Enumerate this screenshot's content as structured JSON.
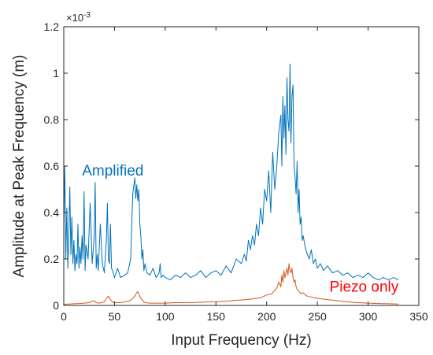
{
  "chart_data": {
    "type": "line",
    "xlabel": "Input Frequency (Hz)",
    "ylabel": "Amplitude at Peak Frequency (m)",
    "exponent_label": "×10",
    "exponent_power": "-3",
    "xlim": [
      0,
      350
    ],
    "ylim": [
      0,
      1.2
    ],
    "xticks": [
      "0",
      "50",
      "100",
      "150",
      "200",
      "250",
      "300",
      "350"
    ],
    "yticks": [
      "0",
      "0.2",
      "0.4",
      "0.6",
      "0.8",
      "1",
      "1.2"
    ],
    "grid": false,
    "series": [
      {
        "name": "Amplified",
        "color": "#0072BD",
        "x": [
          0,
          1,
          2,
          3,
          4,
          5,
          6,
          7,
          8,
          9,
          10,
          11,
          12,
          13,
          14,
          15,
          16,
          17,
          18,
          19,
          20,
          21,
          22,
          24,
          26,
          28,
          30,
          31,
          32,
          33,
          34,
          36,
          38,
          40,
          42,
          43,
          44,
          45,
          46,
          47,
          48,
          50,
          53,
          56,
          60,
          63,
          66,
          68,
          70,
          71,
          72,
          73,
          74,
          75,
          76,
          77,
          78,
          79,
          80,
          82,
          85,
          88,
          91,
          94,
          95,
          96,
          98,
          100,
          105,
          110,
          115,
          120,
          125,
          130,
          135,
          140,
          145,
          150,
          155,
          160,
          165,
          170,
          175,
          178,
          180,
          182,
          184,
          186,
          188,
          190,
          192,
          194,
          196,
          198,
          200,
          202,
          204,
          206,
          208,
          210,
          212,
          214,
          215,
          216,
          217,
          218,
          219,
          220,
          221,
          222,
          223,
          224,
          225,
          226,
          227,
          228,
          229,
          230,
          231,
          232,
          233,
          234,
          235,
          236,
          238,
          240,
          242,
          244,
          246,
          248,
          250,
          253,
          256,
          260,
          265,
          270,
          275,
          280,
          285,
          290,
          295,
          300,
          305,
          310,
          315,
          320,
          325,
          330
        ],
        "y": [
          0.35,
          0.6,
          0.2,
          0.42,
          0.16,
          0.3,
          0.51,
          0.22,
          0.38,
          0.18,
          0.28,
          0.15,
          0.22,
          0.18,
          0.35,
          0.16,
          0.25,
          0.18,
          0.3,
          0.2,
          0.49,
          0.15,
          0.26,
          0.2,
          0.44,
          0.18,
          0.3,
          0.53,
          0.16,
          0.22,
          0.15,
          0.35,
          0.18,
          0.14,
          0.28,
          0.44,
          0.2,
          0.18,
          0.35,
          0.16,
          0.15,
          0.12,
          0.16,
          0.12,
          0.13,
          0.14,
          0.2,
          0.48,
          0.55,
          0.46,
          0.52,
          0.45,
          0.5,
          0.35,
          0.3,
          0.2,
          0.24,
          0.15,
          0.18,
          0.14,
          0.13,
          0.16,
          0.12,
          0.14,
          0.18,
          0.12,
          0.13,
          0.12,
          0.11,
          0.13,
          0.12,
          0.14,
          0.12,
          0.13,
          0.15,
          0.12,
          0.14,
          0.15,
          0.13,
          0.17,
          0.14,
          0.2,
          0.18,
          0.22,
          0.19,
          0.28,
          0.24,
          0.3,
          0.26,
          0.35,
          0.3,
          0.42,
          0.35,
          0.5,
          0.45,
          0.58,
          0.4,
          0.66,
          0.5,
          0.6,
          0.75,
          0.82,
          0.6,
          0.9,
          0.72,
          0.86,
          0.65,
          0.98,
          0.8,
          0.75,
          1.04,
          0.7,
          0.9,
          0.95,
          0.6,
          0.55,
          0.48,
          0.62,
          0.4,
          0.5,
          0.35,
          0.38,
          0.28,
          0.3,
          0.25,
          0.22,
          0.2,
          0.24,
          0.18,
          0.2,
          0.16,
          0.18,
          0.15,
          0.17,
          0.14,
          0.15,
          0.13,
          0.14,
          0.12,
          0.13,
          0.12,
          0.14,
          0.12,
          0.11,
          0.12,
          0.11,
          0.12,
          0.11
        ]
      },
      {
        "name": "Piezo only",
        "color": "#D95319",
        "x": [
          0,
          5,
          10,
          15,
          20,
          25,
          28,
          30,
          32,
          35,
          40,
          42,
          44,
          46,
          48,
          50,
          55,
          60,
          65,
          68,
          70,
          72,
          73,
          74,
          75,
          76,
          78,
          80,
          85,
          90,
          100,
          110,
          120,
          130,
          140,
          150,
          160,
          170,
          180,
          190,
          195,
          200,
          205,
          208,
          210,
          212,
          214,
          215,
          216,
          217,
          218,
          219,
          220,
          221,
          222,
          223,
          224,
          225,
          226,
          227,
          228,
          229,
          230,
          232,
          234,
          236,
          238,
          240,
          245,
          250,
          255,
          260,
          270,
          280,
          290,
          300,
          310,
          320,
          330
        ],
        "y": [
          0.005,
          0.006,
          0.007,
          0.008,
          0.01,
          0.012,
          0.018,
          0.02,
          0.012,
          0.01,
          0.015,
          0.03,
          0.04,
          0.025,
          0.015,
          0.012,
          0.012,
          0.015,
          0.02,
          0.03,
          0.04,
          0.055,
          0.06,
          0.05,
          0.04,
          0.03,
          0.02,
          0.012,
          0.01,
          0.01,
          0.01,
          0.012,
          0.012,
          0.013,
          0.015,
          0.016,
          0.018,
          0.022,
          0.025,
          0.03,
          0.035,
          0.045,
          0.05,
          0.065,
          0.075,
          0.1,
          0.08,
          0.13,
          0.1,
          0.15,
          0.12,
          0.14,
          0.16,
          0.13,
          0.18,
          0.15,
          0.14,
          0.16,
          0.12,
          0.1,
          0.11,
          0.08,
          0.07,
          0.06,
          0.05,
          0.055,
          0.045,
          0.04,
          0.035,
          0.03,
          0.028,
          0.025,
          0.02,
          0.015,
          0.012,
          0.01,
          0.008,
          0.007,
          0.006
        ]
      }
    ],
    "annotations": [
      {
        "text": "Amplified",
        "x": 18,
        "y": 0.56,
        "color": "#0072BD"
      },
      {
        "text": "Piezo only",
        "x": 262,
        "y": 0.06,
        "color": "#FF0000"
      }
    ]
  }
}
